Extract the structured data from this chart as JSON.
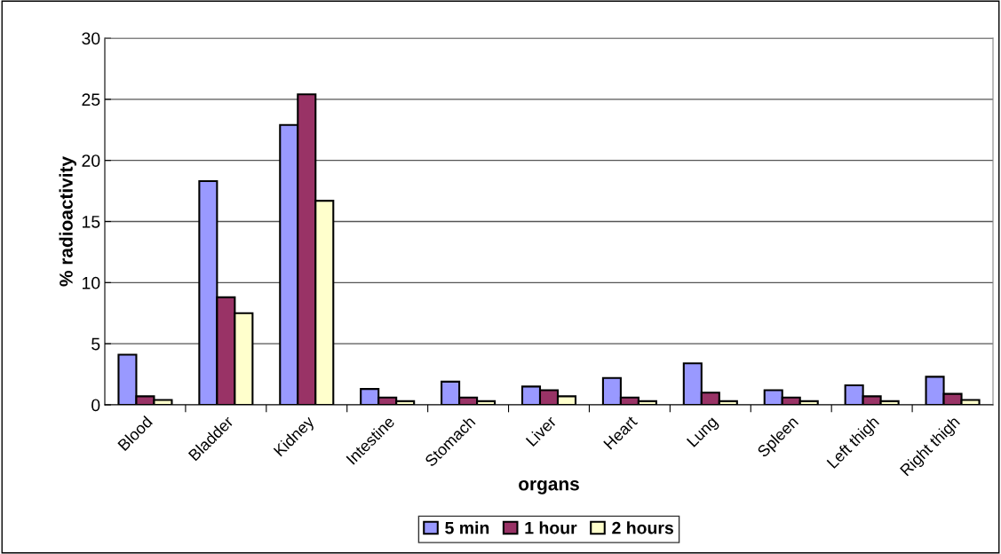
{
  "chart_data": {
    "type": "bar",
    "xlabel": "organs",
    "ylabel": "% radioactivity",
    "categories": [
      "Blood",
      "Bladder",
      "Kidney",
      "Intestine",
      "Stomach",
      "Liver",
      "Heart",
      "Lung",
      "Spleen",
      "Left thigh",
      "Right thigh"
    ],
    "series": [
      {
        "name": "5 min",
        "color": "#9999ff",
        "values": [
          4.1,
          18.3,
          22.9,
          1.3,
          1.9,
          1.5,
          2.2,
          3.4,
          1.2,
          1.6,
          2.3
        ]
      },
      {
        "name": "1 hour",
        "color": "#993366",
        "values": [
          0.7,
          8.8,
          25.4,
          0.6,
          0.6,
          1.2,
          0.6,
          1.0,
          0.6,
          0.7,
          0.9
        ]
      },
      {
        "name": "2 hours",
        "color": "#ffffcc",
        "values": [
          0.4,
          7.5,
          16.7,
          0.3,
          0.3,
          0.7,
          0.3,
          0.3,
          0.3,
          0.3,
          0.4
        ]
      }
    ],
    "ylim": [
      0,
      30
    ],
    "yticks": [
      0,
      5,
      10,
      15,
      20,
      25,
      30
    ],
    "grid": "y",
    "legend": "bottom"
  }
}
